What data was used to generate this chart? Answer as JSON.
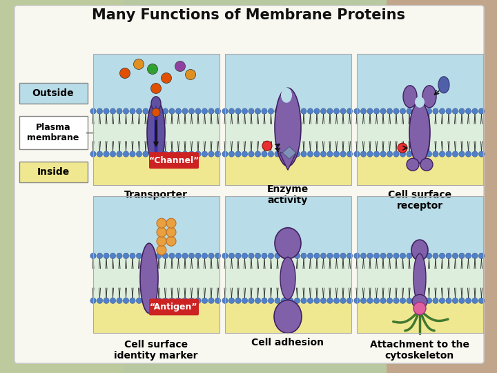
{
  "title": "Many Functions of Membrane Proteins",
  "title_fontsize": 15,
  "bg_outer": "#b8c8a0",
  "bg_outer2": "#c8a090",
  "white_panel": "#f8f8f0",
  "panel_top_color": "#b8dce8",
  "panel_bot_color": "#f0e890",
  "membrane_mid_color": "#d8e8f0",
  "bead_color": "#5080c8",
  "protein_color": "#8060a8",
  "protein_edge": "#402060",
  "outside_box_color": "#b8dce8",
  "inside_box_color": "#f0e890",
  "label_outside": "Outside",
  "label_plasma": "Plasma\nmembrane",
  "label_inside": "Inside",
  "labels": [
    "Transporter",
    "Enzyme\nactivity",
    "Cell surface\nreceptor",
    "Cell surface\nidentity marker",
    "Cell adhesion",
    "Attachment to the\ncytoskeleton"
  ],
  "channel_label": "“Channel”",
  "antigen_label": "“Antigen”",
  "mol_colors_top": [
    "#e05000",
    "#e09020",
    "#30a030",
    "#e05000",
    "#9040a0",
    "#e09020",
    "#e05000"
  ],
  "carb_color": "#e8a040",
  "carb_edge": "#c07020",
  "pink_color": "#e060a0",
  "green_color": "#407830",
  "red_color": "#dd2020",
  "diamond_color": "#8090b8"
}
